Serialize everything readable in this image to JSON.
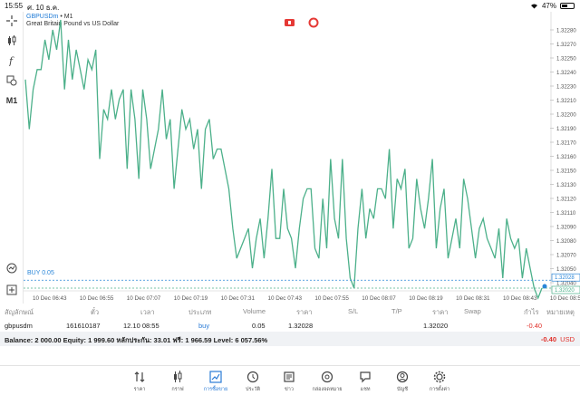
{
  "status": {
    "time": "15:55",
    "date": "ศ. 10 ธ.ค.",
    "battery": "47%",
    "battery_level": 0.47
  },
  "chart": {
    "symbol": "GBPUSDm",
    "timeframe": "• M1",
    "description": "Great Britain Pound vs US Dollar",
    "buy_line_label": "BUY 0.05",
    "side_tools": [
      "crosshair-icon",
      "candles-icon",
      "function-icon",
      "objects-icon"
    ],
    "timeframe_button": "M1",
    "colors": {
      "line": "#4cb08a",
      "buy_line": "#2a86d8",
      "bid_line": "#4cb08a",
      "badge": "#1e7ad6"
    }
  },
  "chart_data": {
    "type": "line",
    "x_ticks": [
      "10 Dec 06:43",
      "10 Dec 06:55",
      "10 Dec 07:07",
      "10 Dec 07:19",
      "10 Dec 07:31",
      "10 Dec 07:43",
      "10 Dec 07:55",
      "10 Dec 08:07",
      "10 Dec 08:19",
      "10 Dec 08:31",
      "10 Dec 08:43",
      "10 Dec 08:5"
    ],
    "y_ticks": [
      "1.32280",
      "1.32270",
      "1.32250",
      "1.32240",
      "1.32230",
      "1.32210",
      "1.32200",
      "1.32190",
      "1.32170",
      "1.32160",
      "1.32150",
      "1.32130",
      "1.32120",
      "1.32110",
      "1.32090",
      "1.32080",
      "1.32070",
      "1.32050",
      "1.32040"
    ],
    "price_labels": {
      "buy": "1.32028",
      "bid": "1.32020"
    },
    "buy_price": 1.32028,
    "bid_price": 1.3202,
    "ylim": [
      1.3202,
      1.3229
    ],
    "values": [
      1.3223,
      1.3218,
      1.3222,
      1.3224,
      1.3224,
      1.3227,
      1.3225,
      1.3228,
      1.3226,
      1.3229,
      1.3222,
      1.3227,
      1.3223,
      1.3226,
      1.3224,
      1.3222,
      1.3225,
      1.3224,
      1.3226,
      1.3215,
      1.322,
      1.3219,
      1.3222,
      1.3219,
      1.3221,
      1.3222,
      1.3214,
      1.3222,
      1.3219,
      1.3213,
      1.3222,
      1.3219,
      1.3214,
      1.3216,
      1.3218,
      1.3222,
      1.3217,
      1.3219,
      1.3212,
      1.3216,
      1.322,
      1.3218,
      1.3219,
      1.3216,
      1.3218,
      1.3212,
      1.3218,
      1.3219,
      1.3215,
      1.3216,
      1.3216,
      1.3214,
      1.3212,
      1.3208,
      1.3205,
      1.3206,
      1.3207,
      1.3208,
      1.3204,
      1.3207,
      1.3209,
      1.3205,
      1.3209,
      1.3214,
      1.3207,
      1.3207,
      1.3212,
      1.3208,
      1.3207,
      1.3204,
      1.3208,
      1.3211,
      1.3212,
      1.3212,
      1.3206,
      1.3205,
      1.3211,
      1.3206,
      1.3215,
      1.3209,
      1.3207,
      1.3215,
      1.3207,
      1.3203,
      1.3202,
      1.3208,
      1.3212,
      1.3207,
      1.321,
      1.3209,
      1.3212,
      1.3212,
      1.3211,
      1.3216,
      1.3208,
      1.3213,
      1.3212,
      1.3214,
      1.3206,
      1.3207,
      1.3213,
      1.321,
      1.3208,
      1.3211,
      1.3215,
      1.3206,
      1.321,
      1.3212,
      1.3205,
      1.3207,
      1.3209,
      1.3206,
      1.3213,
      1.3211,
      1.3208,
      1.3205,
      1.3208,
      1.3209,
      1.3207,
      1.3206,
      1.3205,
      1.3208,
      1.3203,
      1.3209,
      1.3207,
      1.3206,
      1.3207,
      1.3203,
      1.3206,
      1.3204,
      1.3202,
      1.3201,
      1.3202
    ]
  },
  "positions": {
    "headers": [
      "สัญลักษณ์",
      "ตั๋ว",
      "เวลา",
      "ประเภท",
      "Volume",
      "ราคา",
      "S/L",
      "T/P",
      "ราคา",
      "Swap",
      "กำไร",
      "หมายเหตุ"
    ],
    "rows": [
      {
        "symbol": "gbpusdm",
        "ticket": "161610187",
        "time": "12.10 08:55",
        "type": "buy",
        "volume": "0.05",
        "price": "1.32028",
        "sl": "",
        "tp": "",
        "current": "1.32020",
        "swap": "",
        "profit": "-0.40",
        "comment": ""
      }
    ]
  },
  "balance": {
    "text": "Balance: 2 000.00 Equity: 1 999.60 หลักประกัน: 33.01 ฟรี: 1 966.59 Level: 6 057.56%",
    "profit": "-0.40",
    "currency": "USD"
  },
  "tabs": [
    {
      "label": "ราคา",
      "icon": "arrows-updown-icon"
    },
    {
      "label": "กราฟ",
      "icon": "candles-icon"
    },
    {
      "label": "การซื้อขาย",
      "icon": "trade-chart-icon",
      "active": true
    },
    {
      "label": "ประวัติ",
      "icon": "history-icon"
    },
    {
      "label": "ข่าว",
      "icon": "news-icon"
    },
    {
      "label": "กล่องจดหมาย",
      "icon": "mail-at-icon"
    },
    {
      "label": "แชท",
      "icon": "chat-icon"
    },
    {
      "label": "บัญชี",
      "icon": "account-icon"
    },
    {
      "label": "การตั้งค่า",
      "icon": "gear-icon"
    }
  ]
}
